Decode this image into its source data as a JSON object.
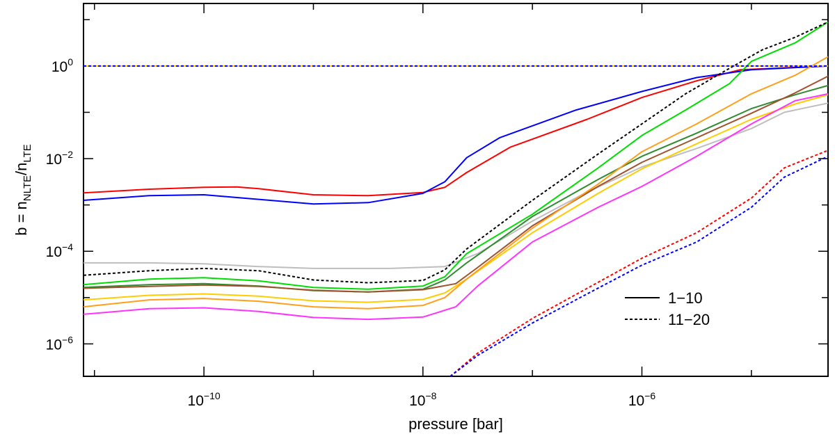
{
  "chart_data": {
    "type": "line",
    "title": "",
    "xlabel": "pressure [bar]",
    "ylabel": {
      "prefix": "b = n",
      "sub1": "NLTE",
      "mid": "/n",
      "sub2": "LTE"
    },
    "x_scale": "log",
    "y_scale": "log",
    "xlim_log10": [
      -11.1,
      -4.3
    ],
    "ylim_log10": [
      -6.7,
      1.35
    ],
    "x_ticks": [
      {
        "base": "10",
        "exp": "−10",
        "log10": -10
      },
      {
        "base": "10",
        "exp": "−8",
        "log10": -8
      },
      {
        "base": "10",
        "exp": "−6",
        "log10": -6
      }
    ],
    "y_ticks": [
      {
        "base": "10",
        "exp": "−6",
        "log10": -6
      },
      {
        "base": "10",
        "exp": "−4",
        "log10": -4
      },
      {
        "base": "10",
        "exp": "−2",
        "log10": -2
      },
      {
        "base": "10",
        "exp": "0",
        "log10": 0
      }
    ],
    "grid": false,
    "legend": {
      "position": "bottom-right",
      "entries": [
        {
          "label": "1−10",
          "dash": "solid"
        },
        {
          "label": "11−20",
          "dash": "dashed"
        }
      ]
    },
    "series": [
      {
        "color": "#ff0000",
        "dash": "solid",
        "points": [
          [
            -11.1,
            -2.74
          ],
          [
            -10.5,
            -2.66
          ],
          [
            -10.0,
            -2.62
          ],
          [
            -9.7,
            -2.61
          ],
          [
            -9.5,
            -2.65
          ],
          [
            -9.0,
            -2.78
          ],
          [
            -8.5,
            -2.8
          ],
          [
            -8.0,
            -2.73
          ],
          [
            -7.8,
            -2.62
          ],
          [
            -7.6,
            -2.3
          ],
          [
            -7.2,
            -1.75
          ],
          [
            -6.5,
            -1.15
          ],
          [
            -6.0,
            -0.68
          ],
          [
            -5.5,
            -0.32
          ],
          [
            -5.1,
            -0.08
          ],
          [
            -4.3,
            0.0
          ]
        ]
      },
      {
        "color": "#0000ff",
        "dash": "solid",
        "points": [
          [
            -11.1,
            -2.9
          ],
          [
            -10.5,
            -2.8
          ],
          [
            -10.0,
            -2.78
          ],
          [
            -9.5,
            -2.88
          ],
          [
            -9.0,
            -2.98
          ],
          [
            -8.5,
            -2.95
          ],
          [
            -8.0,
            -2.75
          ],
          [
            -7.8,
            -2.5
          ],
          [
            -7.6,
            -1.98
          ],
          [
            -7.3,
            -1.55
          ],
          [
            -6.6,
            -0.95
          ],
          [
            -6.0,
            -0.55
          ],
          [
            -5.5,
            -0.25
          ],
          [
            -5.0,
            -0.08
          ],
          [
            -4.3,
            0.0
          ]
        ]
      },
      {
        "color": "#bebebe",
        "dash": "solid",
        "points": [
          [
            -11.1,
            -4.25
          ],
          [
            -10.5,
            -4.25
          ],
          [
            -10.0,
            -4.27
          ],
          [
            -9.5,
            -4.33
          ],
          [
            -9.0,
            -4.37
          ],
          [
            -8.3,
            -4.37
          ],
          [
            -7.8,
            -4.33
          ],
          [
            -7.5,
            -4.05
          ],
          [
            -7.0,
            -3.35
          ],
          [
            -6.5,
            -2.72
          ],
          [
            -6.0,
            -2.18
          ],
          [
            -5.5,
            -1.78
          ],
          [
            -5.0,
            -1.35
          ],
          [
            -4.7,
            -1.0
          ],
          [
            -4.3,
            -0.8
          ]
        ]
      },
      {
        "color": "#00dd00",
        "dash": "solid",
        "points": [
          [
            -11.1,
            -4.72
          ],
          [
            -10.5,
            -4.6
          ],
          [
            -10.0,
            -4.57
          ],
          [
            -9.5,
            -4.64
          ],
          [
            -9.0,
            -4.78
          ],
          [
            -8.5,
            -4.82
          ],
          [
            -8.0,
            -4.75
          ],
          [
            -7.8,
            -4.55
          ],
          [
            -7.6,
            -4.05
          ],
          [
            -7.0,
            -3.2
          ],
          [
            -6.4,
            -2.2
          ],
          [
            -6.0,
            -1.5
          ],
          [
            -5.6,
            -0.95
          ],
          [
            -5.2,
            -0.38
          ],
          [
            -5.0,
            0.1
          ],
          [
            -4.6,
            0.5
          ],
          [
            -4.3,
            0.95
          ]
        ]
      },
      {
        "color": "#2e8b2e",
        "dash": "solid",
        "points": [
          [
            -11.1,
            -4.78
          ],
          [
            -10.5,
            -4.72
          ],
          [
            -10.0,
            -4.7
          ],
          [
            -9.5,
            -4.75
          ],
          [
            -9.0,
            -4.85
          ],
          [
            -8.5,
            -4.88
          ],
          [
            -8.0,
            -4.82
          ],
          [
            -7.8,
            -4.62
          ],
          [
            -7.6,
            -4.25
          ],
          [
            -7.0,
            -3.25
          ],
          [
            -6.4,
            -2.45
          ],
          [
            -6.0,
            -1.95
          ],
          [
            -5.5,
            -1.45
          ],
          [
            -5.0,
            -0.92
          ],
          [
            -4.6,
            -0.62
          ],
          [
            -4.3,
            -0.42
          ]
        ]
      },
      {
        "color": "#a0522d",
        "dash": "solid",
        "points": [
          [
            -11.1,
            -4.8
          ],
          [
            -10.5,
            -4.76
          ],
          [
            -10.0,
            -4.73
          ],
          [
            -9.5,
            -4.76
          ],
          [
            -9.0,
            -4.84
          ],
          [
            -8.5,
            -4.88
          ],
          [
            -8.0,
            -4.83
          ],
          [
            -7.7,
            -4.7
          ],
          [
            -7.5,
            -4.35
          ],
          [
            -7.0,
            -3.45
          ],
          [
            -6.4,
            -2.6
          ],
          [
            -6.0,
            -2.08
          ],
          [
            -5.5,
            -1.55
          ],
          [
            -5.0,
            -1.02
          ],
          [
            -4.6,
            -0.58
          ],
          [
            -4.3,
            -0.22
          ]
        ]
      },
      {
        "color": "#ffcc00",
        "dash": "solid",
        "points": [
          [
            -11.1,
            -5.05
          ],
          [
            -10.5,
            -4.95
          ],
          [
            -10.0,
            -4.92
          ],
          [
            -9.5,
            -4.97
          ],
          [
            -9.0,
            -5.07
          ],
          [
            -8.5,
            -5.1
          ],
          [
            -8.0,
            -5.04
          ],
          [
            -7.8,
            -4.9
          ],
          [
            -7.6,
            -4.6
          ],
          [
            -7.0,
            -3.6
          ],
          [
            -6.4,
            -2.75
          ],
          [
            -6.0,
            -2.22
          ],
          [
            -5.5,
            -1.68
          ],
          [
            -5.0,
            -1.15
          ],
          [
            -4.6,
            -0.82
          ],
          [
            -4.3,
            -0.62
          ]
        ]
      },
      {
        "color": "#ff9f1a",
        "dash": "solid",
        "points": [
          [
            -11.1,
            -5.2
          ],
          [
            -10.5,
            -5.05
          ],
          [
            -10.0,
            -5.02
          ],
          [
            -9.5,
            -5.08
          ],
          [
            -9.0,
            -5.2
          ],
          [
            -8.5,
            -5.24
          ],
          [
            -8.0,
            -5.17
          ],
          [
            -7.8,
            -5.0
          ],
          [
            -7.6,
            -4.6
          ],
          [
            -7.0,
            -3.5
          ],
          [
            -6.4,
            -2.55
          ],
          [
            -6.0,
            -1.85
          ],
          [
            -5.5,
            -1.25
          ],
          [
            -5.0,
            -0.6
          ],
          [
            -4.6,
            -0.2
          ],
          [
            -4.3,
            0.2
          ]
        ]
      },
      {
        "color": "#ff33ff",
        "dash": "solid",
        "points": [
          [
            -11.1,
            -5.36
          ],
          [
            -10.5,
            -5.24
          ],
          [
            -10.0,
            -5.22
          ],
          [
            -9.5,
            -5.3
          ],
          [
            -9.0,
            -5.43
          ],
          [
            -8.5,
            -5.47
          ],
          [
            -8.0,
            -5.42
          ],
          [
            -7.7,
            -5.2
          ],
          [
            -7.5,
            -4.75
          ],
          [
            -7.0,
            -3.8
          ],
          [
            -6.4,
            -3.05
          ],
          [
            -6.0,
            -2.6
          ],
          [
            -5.5,
            -1.95
          ],
          [
            -5.0,
            -1.25
          ],
          [
            -4.6,
            -0.75
          ],
          [
            -4.3,
            -0.6
          ]
        ]
      },
      {
        "color": "#000000",
        "dash": "dashed",
        "points": [
          [
            -11.1,
            -4.52
          ],
          [
            -10.5,
            -4.42
          ],
          [
            -10.0,
            -4.37
          ],
          [
            -9.5,
            -4.42
          ],
          [
            -9.0,
            -4.62
          ],
          [
            -8.5,
            -4.68
          ],
          [
            -8.0,
            -4.63
          ],
          [
            -7.8,
            -4.4
          ],
          [
            -7.6,
            -3.95
          ],
          [
            -7.0,
            -2.9
          ],
          [
            -6.4,
            -1.9
          ],
          [
            -6.0,
            -1.25
          ],
          [
            -5.6,
            -0.6
          ],
          [
            -5.2,
            -0.05
          ],
          [
            -4.9,
            0.35
          ],
          [
            -4.6,
            0.62
          ],
          [
            -4.3,
            0.95
          ]
        ]
      },
      {
        "color": "#ff0000",
        "dash": "dashed",
        "points": [
          [
            -7.75,
            -6.7
          ],
          [
            -7.5,
            -6.2
          ],
          [
            -7.0,
            -5.45
          ],
          [
            -6.5,
            -4.8
          ],
          [
            -6.0,
            -4.15
          ],
          [
            -5.5,
            -3.6
          ],
          [
            -5.0,
            -2.85
          ],
          [
            -4.7,
            -2.2
          ],
          [
            -4.3,
            -1.82
          ]
        ]
      },
      {
        "color": "#0000ff",
        "dash": "dashed",
        "points": [
          [
            -7.75,
            -6.7
          ],
          [
            -7.5,
            -6.25
          ],
          [
            -7.0,
            -5.55
          ],
          [
            -6.5,
            -4.92
          ],
          [
            -6.0,
            -4.3
          ],
          [
            -5.5,
            -3.8
          ],
          [
            -5.0,
            -3.05
          ],
          [
            -4.7,
            -2.4
          ],
          [
            -4.3,
            -1.95
          ]
        ]
      },
      {
        "color": "#ffcc00",
        "dash": "solid",
        "points": [
          [
            -11.1,
            0.0
          ],
          [
            -4.3,
            0.0
          ]
        ]
      },
      {
        "color": "#0000ff",
        "dash": "dashed",
        "points": [
          [
            -11.1,
            0.0
          ],
          [
            -4.3,
            0.0
          ]
        ]
      }
    ]
  }
}
